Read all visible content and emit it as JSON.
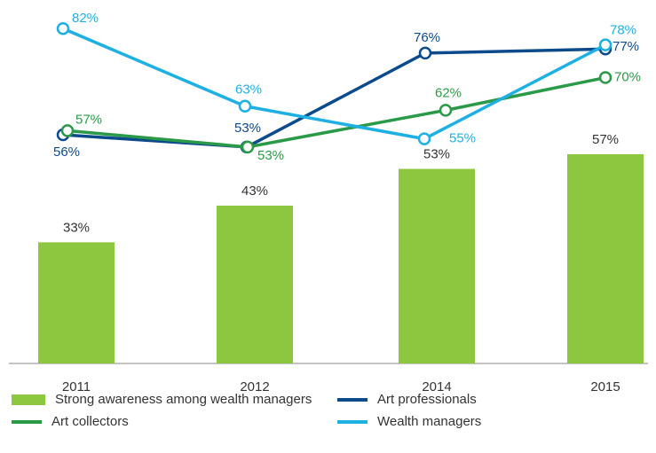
{
  "chart_data": {
    "type": "bar",
    "categories": [
      "2011",
      "2012",
      "2014",
      "2015"
    ],
    "ylim": [
      0,
      99
    ],
    "y2lim": [
      0,
      89
    ],
    "series": [
      {
        "name": "Strong awareness among wealth managers",
        "type": "bar",
        "color": "#8dc63f",
        "values": [
          33,
          43,
          53,
          57
        ],
        "value_labels": [
          "33%",
          "43%",
          "53%",
          "57%"
        ]
      },
      {
        "name": "Art professionals",
        "type": "line",
        "axis": "y2",
        "color": "#0b4a8b",
        "values": [
          56,
          53,
          76,
          77
        ],
        "value_labels": [
          "56%",
          "53%",
          "76%",
          "77%"
        ]
      },
      {
        "name": "Art collectors",
        "type": "line",
        "axis": "y2",
        "color": "#2b9a48",
        "values": [
          57,
          53,
          62,
          70
        ],
        "value_labels": [
          "57%",
          "53%",
          "62%",
          "70%"
        ]
      },
      {
        "name": "Wealth managers",
        "type": "line",
        "axis": "y2",
        "color": "#1fb0e3",
        "values": [
          82,
          63,
          55,
          78
        ],
        "value_labels": [
          "82%",
          "63%",
          "55%",
          "78%"
        ]
      }
    ]
  }
}
